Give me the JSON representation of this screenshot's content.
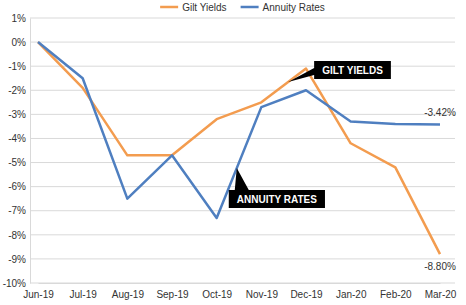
{
  "chart_data": {
    "type": "line",
    "categories": [
      "Jun-19",
      "Jul-19",
      "Aug-19",
      "Sep-19",
      "Oct-19",
      "Nov-19",
      "Dec-19",
      "Jan-20",
      "Feb-20",
      "Mar-20"
    ],
    "series": [
      {
        "name": "Gilt Yields",
        "color": "#f39c4f",
        "values": [
          0,
          -1.9,
          -4.7,
          -4.7,
          -3.2,
          -2.5,
          -1.1,
          -4.2,
          -5.2,
          -8.8
        ],
        "value_labels": [
          null,
          null,
          null,
          null,
          null,
          null,
          null,
          null,
          null,
          "-8.80%"
        ]
      },
      {
        "name": "Annuity Rates",
        "color": "#4f7fc0",
        "values": [
          0,
          -1.5,
          -6.5,
          -4.7,
          -7.3,
          -2.7,
          -2.0,
          -3.3,
          -3.4,
          -3.42
        ],
        "value_labels": [
          null,
          null,
          null,
          null,
          null,
          null,
          null,
          null,
          null,
          "-3.42%"
        ]
      }
    ],
    "annotations": [
      "GILT YIELDS",
      "ANNUITY RATES"
    ],
    "ylim": [
      -10,
      1
    ],
    "yticks": [
      {
        "value": 1,
        "label": "1%"
      },
      {
        "value": 0,
        "label": "0%"
      },
      {
        "value": -1,
        "label": "-1%"
      },
      {
        "value": -2,
        "label": "-2%"
      },
      {
        "value": -3,
        "label": "-3%"
      },
      {
        "value": -4,
        "label": "-4%"
      },
      {
        "value": -5,
        "label": "-5%"
      },
      {
        "value": -6,
        "label": "-6%"
      },
      {
        "value": -7,
        "label": "-7%"
      },
      {
        "value": -8,
        "label": "-8%"
      },
      {
        "value": -9,
        "label": "-9%"
      },
      {
        "value": -10,
        "label": "-10%"
      }
    ],
    "grid": true,
    "legend": "top"
  }
}
